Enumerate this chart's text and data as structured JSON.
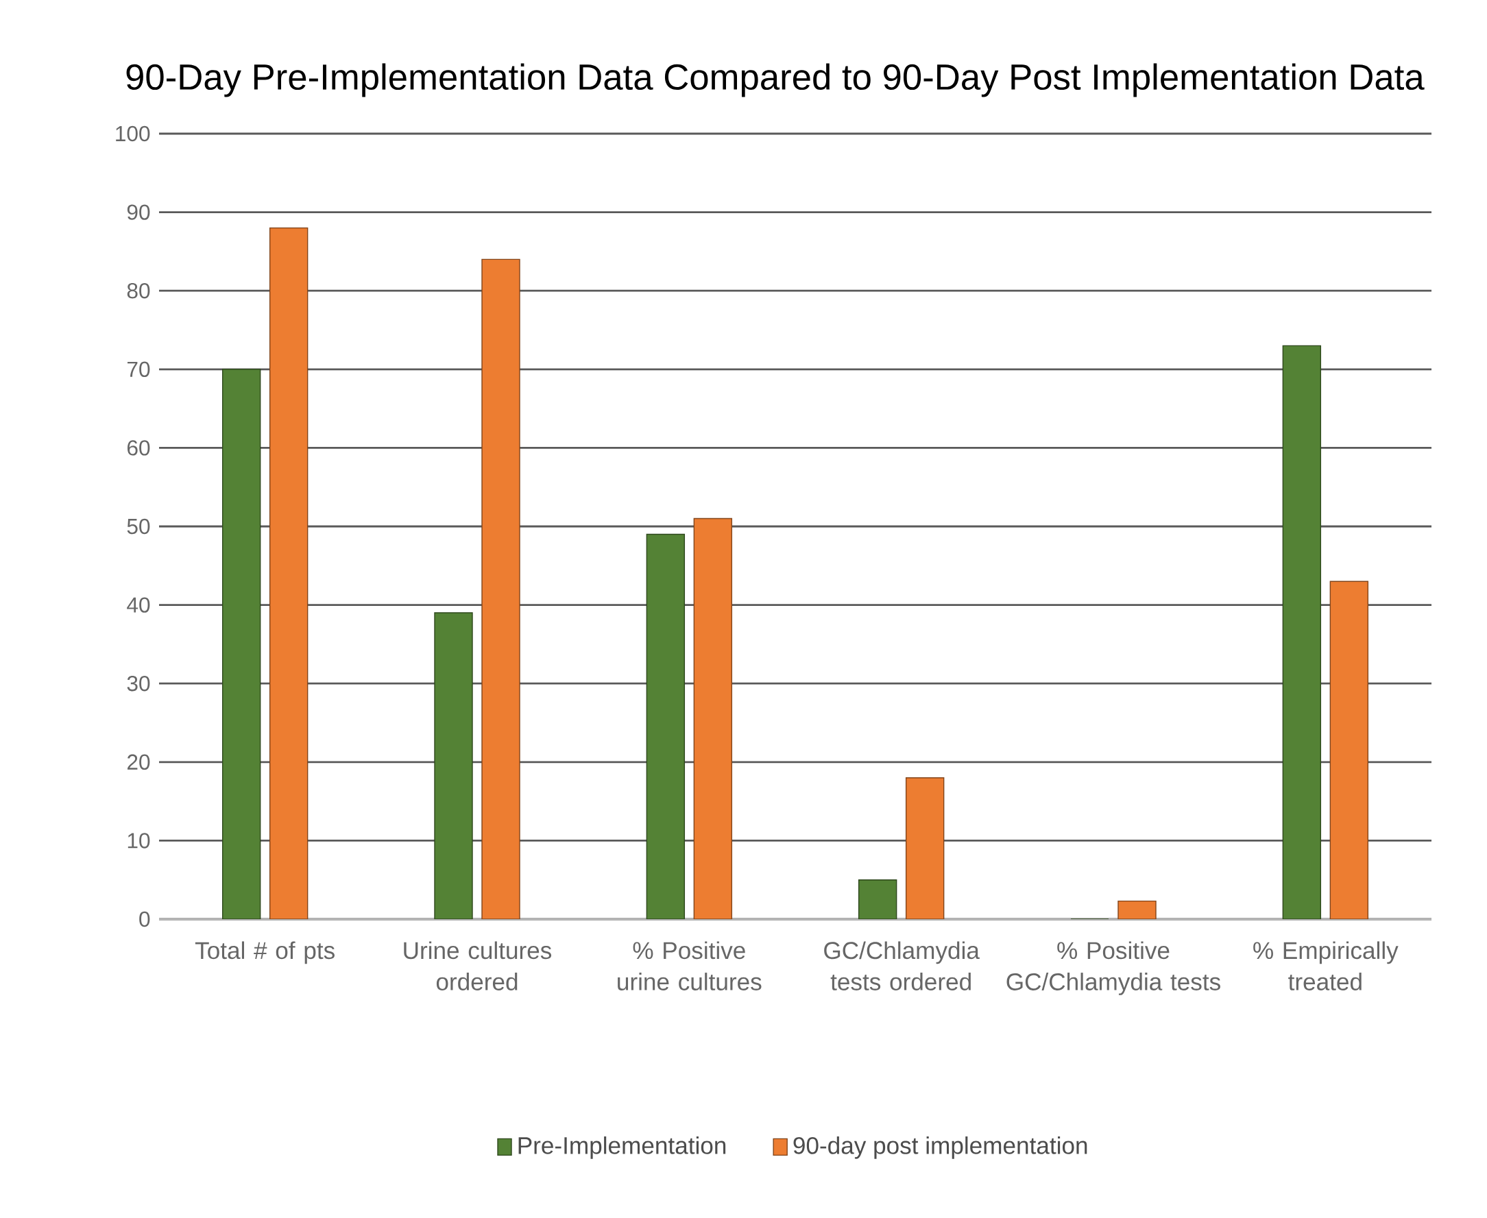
{
  "chart_data": {
    "type": "bar",
    "title": "90-Day Pre-Implementation Data Compared to 90-Day Post Implementation Data",
    "categories": [
      "Total # of pts",
      "Urine cultures ordered",
      "% Positive urine cultures",
      "GC/Chlamydia tests ordered",
      "% Positive GC/Chlamydia tests",
      "% Empirically treated"
    ],
    "series": [
      {
        "name": "Pre-Implementation",
        "color": "#548235",
        "values": [
          70,
          39,
          49,
          5,
          0,
          73
        ]
      },
      {
        "name": "90-day post implementation",
        "color": "#ed7d31",
        "values": [
          88,
          84,
          51,
          18,
          2.3,
          43
        ]
      }
    ],
    "ylim": [
      0,
      100
    ],
    "yticks": [
      0,
      10,
      20,
      30,
      40,
      50,
      60,
      70,
      80,
      90,
      100
    ],
    "grid": "y",
    "legend": "bottom"
  }
}
